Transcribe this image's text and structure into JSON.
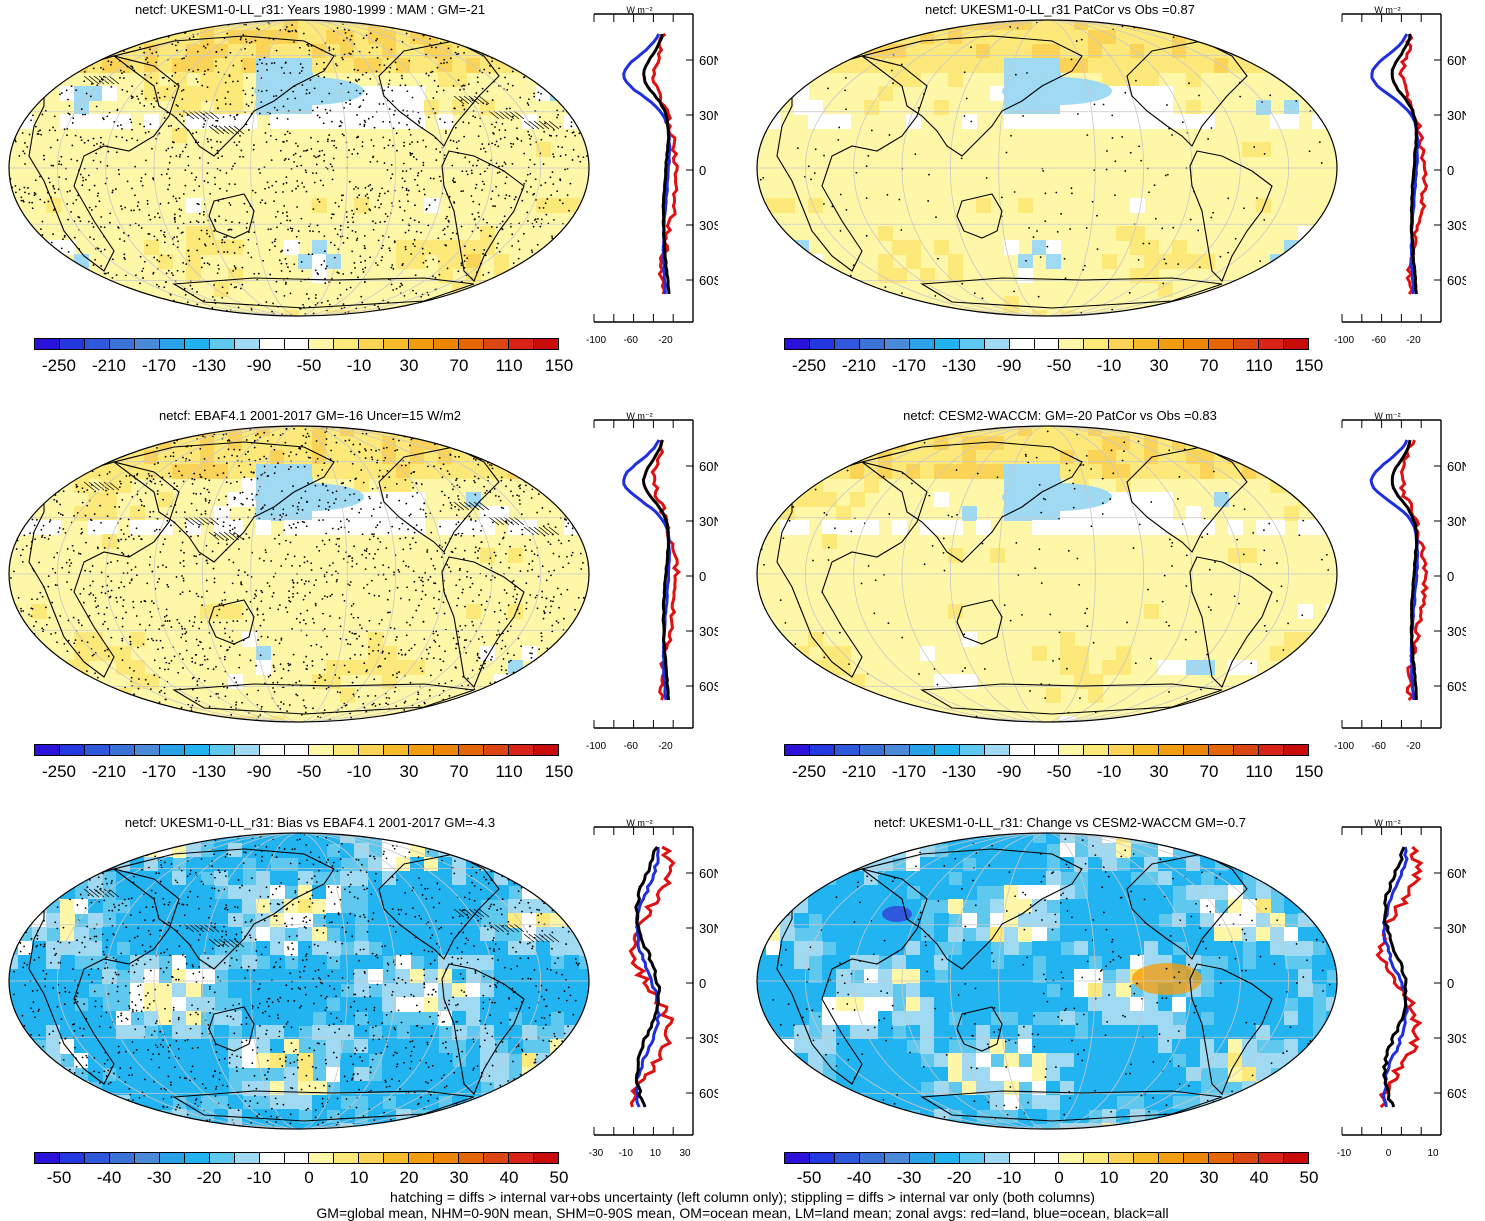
{
  "panels": [
    {
      "title": "netcf: UKESM1-0-LL_r31: Years 1980-1999 : MAM : GM=-21",
      "scale": "full",
      "style": "model",
      "hatch": true,
      "stipple": 0.55
    },
    {
      "title": "netcf: UKESM1-0-LL_r31 PatCor vs Obs =0.87",
      "scale": "full",
      "style": "model",
      "hatch": false,
      "stipple": 0.06
    },
    {
      "title": "netcf: EBAF4.1 2001-2017 GM=-16 Uncer=15 W/m2",
      "scale": "full",
      "style": "obs",
      "hatch": true,
      "stipple": 0.55
    },
    {
      "title": "netcf: CESM2-WACCM: GM=-20 PatCor vs Obs =0.83",
      "scale": "full",
      "style": "model2",
      "hatch": false,
      "stipple": 0.06
    },
    {
      "title": "netcf: UKESM1-0-LL_r31: Bias vs EBAF4.1 2001-2017 GM=-4.3",
      "scale": "diff",
      "style": "bias",
      "hatch": true,
      "stipple": 0.45
    },
    {
      "title": "netcf: UKESM1-0-LL_r31: Change vs CESM2-WACCM GM=-0.7",
      "scale": "diff",
      "style": "change",
      "hatch": false,
      "stipple": 0.1
    }
  ],
  "colorbar_full": {
    "labels": [
      "-250",
      "-210",
      "-170",
      "-130",
      "-90",
      "-50",
      "-10",
      "30",
      "70",
      "110",
      "150"
    ]
  },
  "colorbar_diff": {
    "labels": [
      "-50",
      "-40",
      "-30",
      "-20",
      "-10",
      "0",
      "10",
      "20",
      "30",
      "40",
      "50"
    ]
  },
  "colors": [
    "#2a12d8",
    "#2438e0",
    "#2f58dc",
    "#3b72d8",
    "#4b8ad8",
    "#2aa2e8",
    "#22b4f0",
    "#5fc8ee",
    "#9fd9f2",
    "#ffffff",
    "#ffffff",
    "#fff7a8",
    "#fde87a",
    "#fbd457",
    "#f8bb2c",
    "#f29e12",
    "#ec8508",
    "#e46606",
    "#dc4612",
    "#d82418",
    "#c80c0c"
  ],
  "zonal": {
    "unit": "W m⁻²",
    "lat_labels": [
      "60N",
      "30N",
      "0",
      "30S",
      "60S"
    ],
    "x_labels_full": [
      "-100",
      "-60",
      "-20"
    ],
    "x_labels_bias": [
      "-30",
      "-10",
      "10",
      "30"
    ],
    "x_labels_change": [
      "-10",
      "0",
      "10"
    ]
  },
  "footer": {
    "line1": "hatching = diffs > internal var+obs uncertainty (left column only); stippling = diffs > internal var only (both columns)",
    "line2": "GM=global mean, NHM=0-90N mean, SHM=0-90S mean, OM=ocean mean, LM=land mean; zonal avgs: red=land, blue=ocean, black=all"
  }
}
